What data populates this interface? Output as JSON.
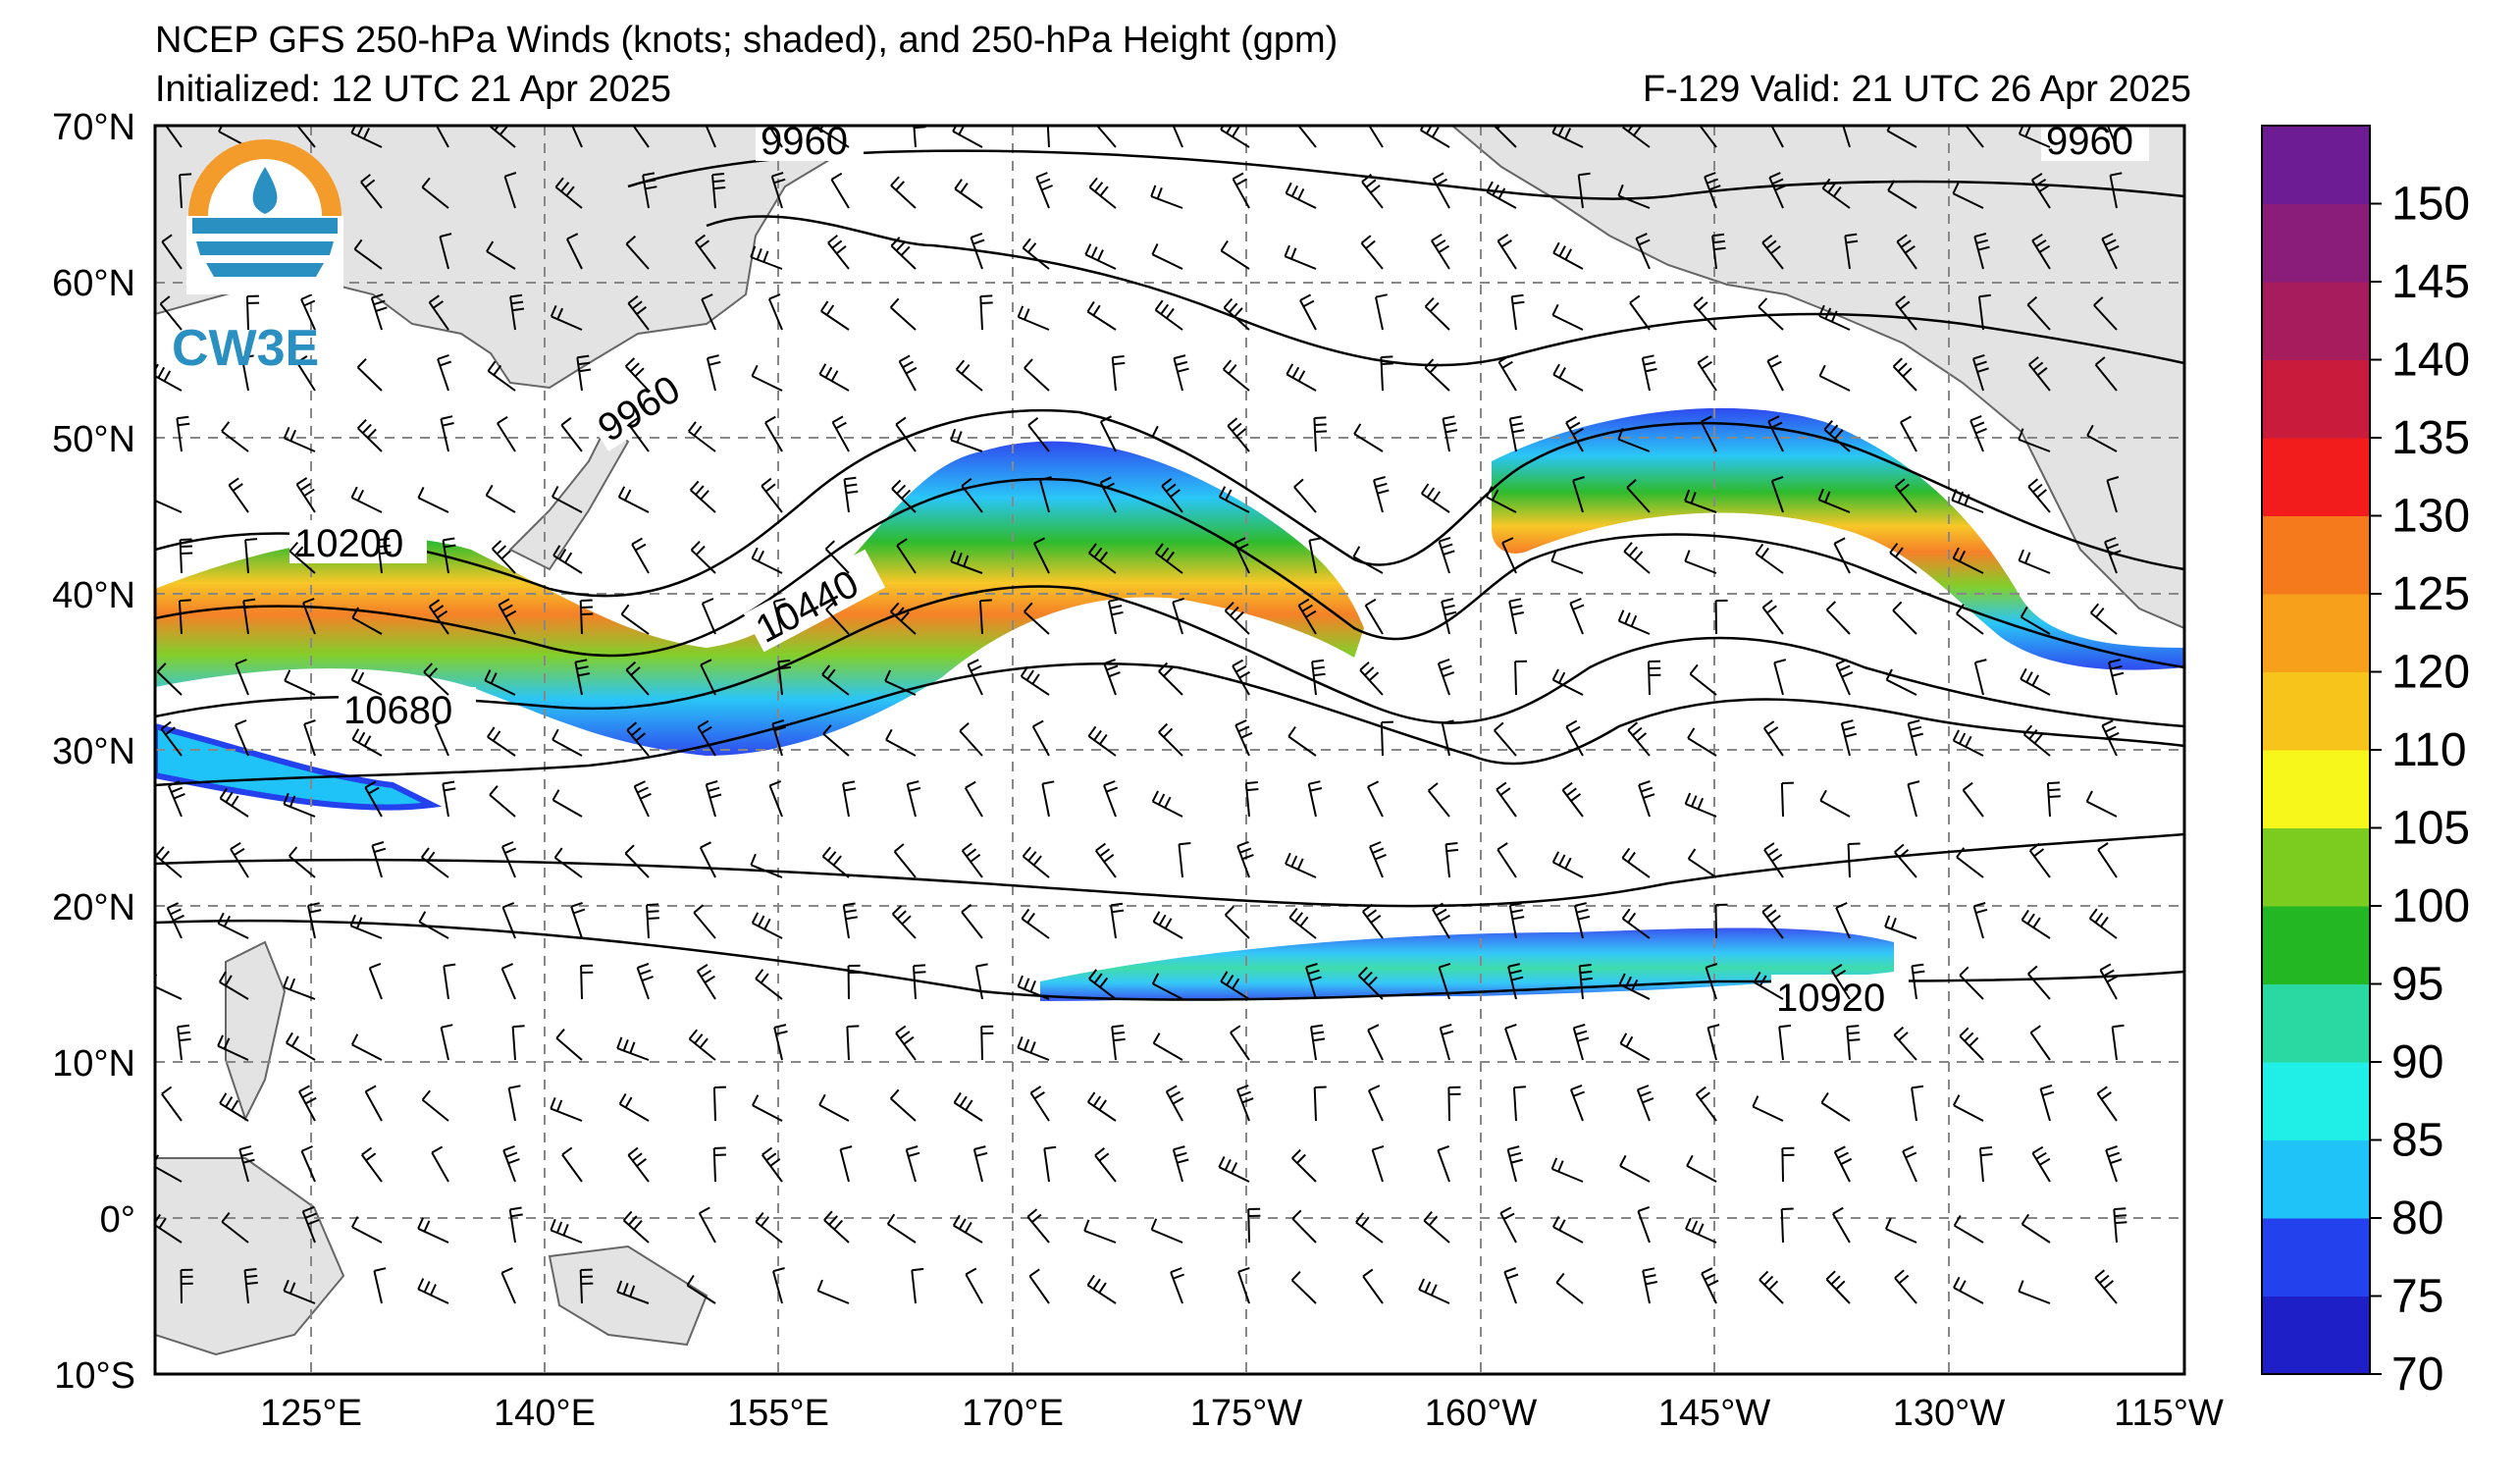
{
  "header": {
    "title": "NCEP GFS 250-hPa Winds (knots; shaded), and 250-hPa Height (gpm)",
    "initialized": "Initialized: 12 UTC 21 Apr 2025",
    "valid": "F-129  Valid: 21 UTC 26 Apr 2025"
  },
  "logo": {
    "text": "CW3E",
    "colors": [
      "#f39c2b",
      "#2a8fc1"
    ]
  },
  "map": {
    "lat_labels": [
      "70°N",
      "60°N",
      "50°N",
      "40°N",
      "30°N",
      "20°N",
      "10°N",
      "0°",
      "10°S"
    ],
    "lon_labels": [
      "125°E",
      "140°E",
      "155°E",
      "170°E",
      "175°W",
      "160°W",
      "145°W",
      "130°W",
      "115°W"
    ],
    "contour_labels": [
      "9960",
      "9960",
      "9960",
      "10200",
      "10440",
      "10680",
      "10920"
    ],
    "land_color": "#e3e3e3",
    "coast_color": "#666666"
  },
  "colorbar": {
    "labels": [
      "150",
      "145",
      "140",
      "135",
      "130",
      "125",
      "120",
      "110",
      "105",
      "100",
      "95",
      "90",
      "85",
      "80",
      "75",
      "70"
    ],
    "colors": [
      "#1f1fc8",
      "#2441ee",
      "#1fc3f7",
      "#1fefe6",
      "#2ad8a2",
      "#23b723",
      "#7ccc1f",
      "#f7f71c",
      "#f7c41c",
      "#f7a01c",
      "#f57a1c",
      "#f21c1c",
      "#c91c3d",
      "#a61c5d",
      "#8a1c7a",
      "#6e1c93"
    ]
  }
}
